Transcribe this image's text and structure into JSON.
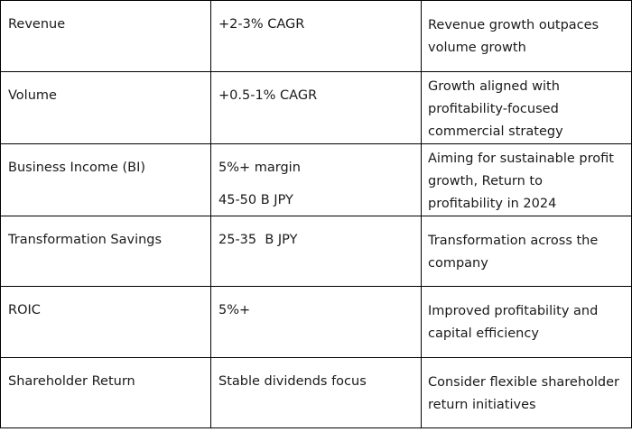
{
  "rows": [
    {
      "metric": "Revenue",
      "target": "+2-3% CAGR",
      "target2": "",
      "note_lines": [
        "Revenue growth outpaces",
        "volume growth"
      ]
    },
    {
      "metric": "Volume",
      "target": "+0.5-1% CAGR",
      "target2": "",
      "note_lines": [
        "Growth aligned with",
        "profitability-focused",
        "commercial strategy"
      ]
    },
    {
      "metric": "Business Income (BI)",
      "target": "5%+ margin",
      "target2": "45-50 B JPY",
      "note_lines": [
        "Aiming for sustainable profit",
        "growth, Return to",
        "profitability in 2024"
      ]
    },
    {
      "metric": "Transformation Savings",
      "target": "25-35  B JPY",
      "target2": "",
      "note_lines": [
        "Transformation across the",
        "company"
      ]
    },
    {
      "metric": "ROIC",
      "target": "5%+",
      "target2": "",
      "note_lines": [
        "Improved profitability and",
        "capital efficiency"
      ]
    },
    {
      "metric": "Shareholder Return",
      "target": "Stable dividends focus",
      "target2": "",
      "note_lines": [
        "Consider flexible shareholder",
        "return initiatives"
      ]
    }
  ]
}
